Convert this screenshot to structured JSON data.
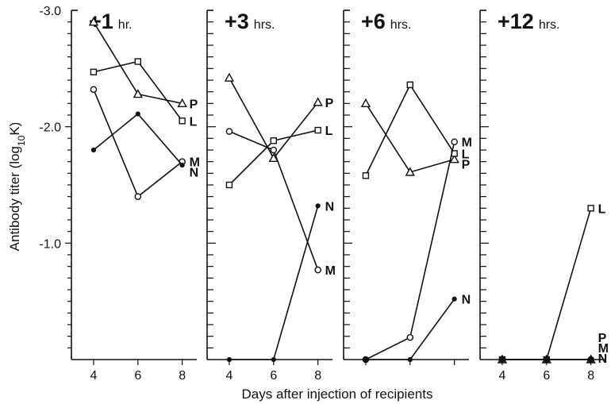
{
  "figure": {
    "ylabel": "Antibody titer (log",
    "ylabel_sub": "10",
    "ylabel_end": "K)",
    "xlabel": "Days after injection of recipients"
  },
  "chart_data": [
    {
      "type": "line",
      "title_big": "+1",
      "title_small": "hr.",
      "x_ticks": [
        "4",
        "6",
        "8"
      ],
      "y_ticks": [
        "-3.0",
        "-2.0",
        "-1.0"
      ],
      "xlim": [
        3,
        8.8
      ],
      "ylim": [
        0,
        3.0
      ],
      "series": [
        {
          "name": "P",
          "marker": "triangle",
          "points": [
            [
              4,
              2.9
            ],
            [
              6,
              2.28
            ],
            [
              8,
              2.2
            ]
          ]
        },
        {
          "name": "L",
          "marker": "square",
          "points": [
            [
              4,
              2.47
            ],
            [
              6,
              2.56
            ],
            [
              8,
              2.05
            ]
          ]
        },
        {
          "name": "M",
          "marker": "circle",
          "points": [
            [
              4,
              2.32
            ],
            [
              6,
              1.4
            ],
            [
              8,
              1.7
            ]
          ]
        },
        {
          "name": "N",
          "marker": "dot",
          "points": [
            [
              4,
              1.8
            ],
            [
              6,
              2.11
            ],
            [
              8,
              1.67
            ]
          ]
        }
      ]
    },
    {
      "type": "line",
      "title_big": "+3",
      "title_small": "hrs.",
      "x_ticks": [
        "4",
        "6",
        "8"
      ],
      "y_ticks": [],
      "xlim": [
        3,
        8.8
      ],
      "ylim": [
        0,
        3.0
      ],
      "series": [
        {
          "name": "P",
          "marker": "triangle",
          "points": [
            [
              4,
              2.42
            ],
            [
              6,
              1.73
            ],
            [
              8,
              2.21
            ]
          ]
        },
        {
          "name": "L",
          "marker": "square",
          "points": [
            [
              4,
              1.5
            ],
            [
              6,
              1.88
            ],
            [
              8,
              1.97
            ]
          ]
        },
        {
          "name": "M",
          "marker": "circle",
          "points": [
            [
              4,
              1.96
            ],
            [
              6,
              1.8
            ],
            [
              8,
              0.77
            ]
          ]
        },
        {
          "name": "N",
          "marker": "dot",
          "points": [
            [
              4,
              0.0
            ],
            [
              6,
              0.0
            ],
            [
              8,
              1.32
            ]
          ]
        }
      ]
    },
    {
      "type": "line",
      "title_big": "+6",
      "title_small": "hrs.",
      "x_ticks": [],
      "y_ticks": [],
      "xlim": [
        3,
        8.8
      ],
      "ylim": [
        0,
        3.0
      ],
      "series": [
        {
          "name": "P",
          "marker": "triangle",
          "points": [
            [
              4,
              2.2
            ],
            [
              6,
              1.61
            ],
            [
              8,
              1.72
            ]
          ]
        },
        {
          "name": "L",
          "marker": "square",
          "points": [
            [
              4,
              1.58
            ],
            [
              6,
              2.36
            ],
            [
              8,
              1.77
            ]
          ]
        },
        {
          "name": "M",
          "marker": "circle",
          "points": [
            [
              4,
              0.0
            ],
            [
              6,
              0.19
            ],
            [
              8,
              1.87
            ]
          ]
        },
        {
          "name": "N",
          "marker": "dot",
          "points": [
            [
              4,
              0.0
            ],
            [
              6,
              0.0
            ],
            [
              8,
              0.52
            ]
          ]
        }
      ]
    },
    {
      "type": "line",
      "title_big": "+12",
      "title_small": "hrs.",
      "x_ticks": [
        "4",
        "6",
        "8"
      ],
      "y_ticks": [],
      "xlim": [
        3,
        8.8
      ],
      "ylim": [
        0,
        3.0
      ],
      "series": [
        {
          "name": "L",
          "marker": "square",
          "points": [
            [
              4,
              0.0
            ],
            [
              6,
              0.0
            ],
            [
              8,
              1.3
            ]
          ]
        },
        {
          "name": "P",
          "marker": "triangle",
          "points": [
            [
              4,
              0.0
            ],
            [
              6,
              0.0
            ],
            [
              8,
              0.0
            ]
          ]
        },
        {
          "name": "M",
          "marker": "circle",
          "points": [
            [
              4,
              0.0
            ],
            [
              6,
              0.0
            ],
            [
              8,
              0.0
            ]
          ]
        },
        {
          "name": "N",
          "marker": "dot",
          "points": [
            [
              4,
              0.0
            ],
            [
              6,
              0.0
            ],
            [
              8,
              0.0
            ]
          ]
        }
      ]
    }
  ]
}
